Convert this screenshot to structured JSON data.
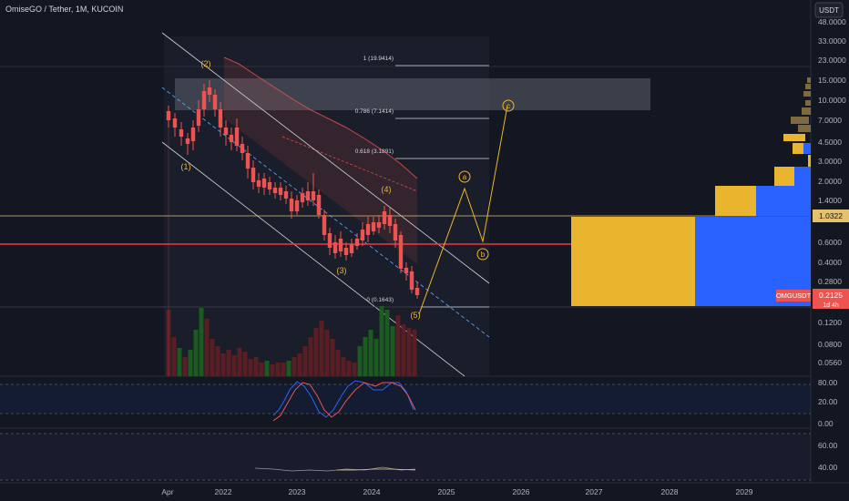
{
  "header": {
    "title": "OmiseGO / Tether, 1M, KUCOIN",
    "currency_button": "USDT"
  },
  "price_axis": {
    "ticks": [
      "48.0000",
      "33.0000",
      "23.0000",
      "15.0000",
      "10.0000",
      "7.0000",
      "4.5000",
      "3.0000",
      "2.0000",
      "1.4000",
      "0.6000",
      "0.4000",
      "0.2800",
      "0.1800",
      "0.1200",
      "0.0800",
      "0.0560"
    ],
    "last_level_label": "1.0322",
    "symbol_label": "OMGUSDT",
    "price_label": "0.2125",
    "countdown_label": "1d 4h"
  },
  "time_axis": {
    "labels": [
      "Apr",
      "2022",
      "2023",
      "2024",
      "2025",
      "2026",
      "2027",
      "2028",
      "2029"
    ]
  },
  "fib_levels": [
    {
      "label": "1 (19.9414)"
    },
    {
      "label": "0.786 (7.1414)"
    },
    {
      "label": "0.618 (3.1891)"
    },
    {
      "label": "0 (0.1643)"
    }
  ],
  "waves": [
    {
      "label": "(1)"
    },
    {
      "label": "(2)"
    },
    {
      "label": "(3)"
    },
    {
      "label": "(4)"
    },
    {
      "label": "(5)"
    },
    {
      "label": "a"
    },
    {
      "label": "b"
    },
    {
      "label": "c"
    }
  ],
  "oscillator1": {
    "ticks": [
      "80.00",
      "20.00",
      "0.00"
    ]
  },
  "oscillator2": {
    "ticks": [
      "60.00",
      "40.00"
    ]
  },
  "colors": {
    "background": "#131722",
    "up": "#26a69a",
    "down": "#ef5350",
    "wave": "#f0b429",
    "horizontal_line": "#f23645",
    "level_line": "#e3c16f",
    "volume_profile_yellow": "#e9b52f",
    "volume_profile_blue": "#2962ff"
  }
}
